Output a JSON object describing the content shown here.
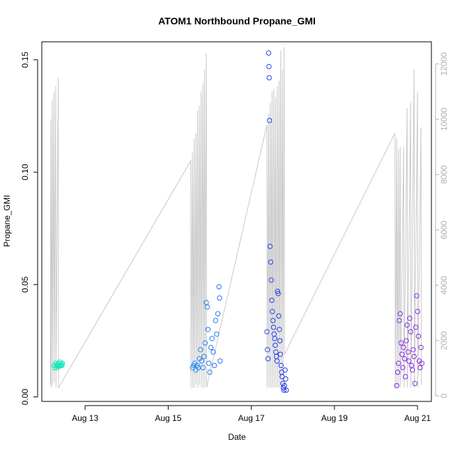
{
  "chart_data": {
    "type": "scatter",
    "title": "ATOM1 Northbound Propane_GMI",
    "xlabel": "Date",
    "ylabel": "Propane_GMI",
    "x_ticks": [
      "Aug 13",
      "Aug 15",
      "Aug 17",
      "Aug 19",
      "Aug 21"
    ],
    "x_tick_values": [
      "2023-08-13",
      "2023-08-15",
      "2023-08-17",
      "2023-08-19",
      "2023-08-21"
    ],
    "xlim": [
      "2023-08-11 23:00",
      "2023-08-21 08:00"
    ],
    "y_ticks": [
      "0.00",
      "0.05",
      "0.10",
      "0.15"
    ],
    "y_tick_values": [
      0,
      0.05,
      0.1,
      0.15
    ],
    "ylim": [
      -0.002,
      0.158
    ],
    "y2_ticks": [
      "0",
      "2000",
      "4000",
      "6000",
      "8000",
      "10000",
      "12000"
    ],
    "y2_tick_values": [
      0,
      2000,
      4000,
      6000,
      8000,
      10000,
      12000
    ],
    "y2lim": [
      -200,
      12800
    ],
    "grid": false,
    "legend": "none",
    "colors": {
      "points_gradient": [
        "#1de9b6",
        "#13c8e0",
        "#1ea5f0",
        "#2e5cf5",
        "#1f2fe8",
        "#6d2cf0",
        "#8a2be2"
      ],
      "secondary_line": "#c8c8c8"
    },
    "series": [
      {
        "marker": "circle",
        "points": [
          [
            "2023-08-12 06:00",
            0.014
          ],
          [
            "2023-08-12 06:30",
            0.013
          ],
          [
            "2023-08-12 07:00",
            0.015
          ],
          [
            "2023-08-12 07:15",
            0.014
          ],
          [
            "2023-08-12 07:40",
            0.013
          ],
          [
            "2023-08-12 08:00",
            0.0145
          ],
          [
            "2023-08-12 08:20",
            0.014
          ],
          [
            "2023-08-12 08:40",
            0.015
          ],
          [
            "2023-08-12 09:00",
            0.0135
          ],
          [
            "2023-08-12 09:20",
            0.014
          ],
          [
            "2023-08-12 09:40",
            0.0155
          ],
          [
            "2023-08-12 10:00",
            0.014
          ],
          [
            "2023-08-12 10:20",
            0.0145
          ],
          [
            "2023-08-12 10:40",
            0.014
          ],
          [
            "2023-08-12 11:00",
            0.015
          ],
          [
            "2023-08-15 14:00",
            0.013
          ],
          [
            "2023-08-15 14:40",
            0.014
          ],
          [
            "2023-08-15 15:20",
            0.015
          ],
          [
            "2023-08-15 16:00",
            0.012
          ],
          [
            "2023-08-15 16:40",
            0.014
          ],
          [
            "2023-08-15 17:20",
            0.013
          ],
          [
            "2023-08-15 18:00",
            0.017
          ],
          [
            "2023-08-15 18:40",
            0.021
          ],
          [
            "2023-08-15 19:20",
            0.016
          ],
          [
            "2023-08-15 20:00",
            0.013
          ],
          [
            "2023-08-15 20:40",
            0.018
          ],
          [
            "2023-08-15 21:20",
            0.024
          ],
          [
            "2023-08-15 22:00",
            0.042
          ],
          [
            "2023-08-15 22:30",
            0.04
          ],
          [
            "2023-08-15 23:00",
            0.03
          ],
          [
            "2023-08-15 23:30",
            0.015
          ],
          [
            "2023-08-16 00:00",
            0.011
          ],
          [
            "2023-08-16 00:40",
            0.022
          ],
          [
            "2023-08-16 01:20",
            0.026
          ],
          [
            "2023-08-16 02:00",
            0.02
          ],
          [
            "2023-08-16 02:40",
            0.014
          ],
          [
            "2023-08-16 03:20",
            0.034
          ],
          [
            "2023-08-16 04:00",
            0.028
          ],
          [
            "2023-08-16 04:40",
            0.037
          ],
          [
            "2023-08-16 05:20",
            0.049
          ],
          [
            "2023-08-16 05:40",
            0.044
          ],
          [
            "2023-08-16 06:00",
            0.016
          ],
          [
            "2023-08-17 09:00",
            0.029
          ],
          [
            "2023-08-17 09:20",
            0.021
          ],
          [
            "2023-08-17 09:40",
            0.017
          ],
          [
            "2023-08-17 10:00",
            0.153
          ],
          [
            "2023-08-17 10:10",
            0.147
          ],
          [
            "2023-08-17 10:20",
            0.142
          ],
          [
            "2023-08-17 10:30",
            0.123
          ],
          [
            "2023-08-17 10:50",
            0.067
          ],
          [
            "2023-08-17 11:10",
            0.06
          ],
          [
            "2023-08-17 11:30",
            0.052
          ],
          [
            "2023-08-17 11:50",
            0.043
          ],
          [
            "2023-08-17 12:10",
            0.038
          ],
          [
            "2023-08-17 12:30",
            0.034
          ],
          [
            "2023-08-17 12:50",
            0.031
          ],
          [
            "2023-08-17 13:10",
            0.028
          ],
          [
            "2023-08-17 13:30",
            0.026
          ],
          [
            "2023-08-17 13:50",
            0.023
          ],
          [
            "2023-08-17 14:10",
            0.02
          ],
          [
            "2023-08-17 14:30",
            0.018
          ],
          [
            "2023-08-17 14:50",
            0.016
          ],
          [
            "2023-08-17 15:10",
            0.047
          ],
          [
            "2023-08-17 15:30",
            0.046
          ],
          [
            "2023-08-17 15:50",
            0.036
          ],
          [
            "2023-08-17 16:10",
            0.03
          ],
          [
            "2023-08-17 16:30",
            0.025
          ],
          [
            "2023-08-17 16:50",
            0.019
          ],
          [
            "2023-08-17 17:10",
            0.014
          ],
          [
            "2023-08-17 17:30",
            0.011
          ],
          [
            "2023-08-17 17:50",
            0.009
          ],
          [
            "2023-08-17 18:10",
            0.006
          ],
          [
            "2023-08-17 18:30",
            0.004
          ],
          [
            "2023-08-17 18:50",
            0.003
          ],
          [
            "2023-08-17 19:10",
            0.005
          ],
          [
            "2023-08-17 19:30",
            0.012
          ],
          [
            "2023-08-17 19:50",
            0.008
          ],
          [
            "2023-08-17 20:10",
            0.003
          ],
          [
            "2023-08-20 12:00",
            0.005
          ],
          [
            "2023-08-20 12:30",
            0.011
          ],
          [
            "2023-08-20 13:00",
            0.015
          ],
          [
            "2023-08-20 13:30",
            0.034
          ],
          [
            "2023-08-20 14:00",
            0.037
          ],
          [
            "2023-08-20 14:30",
            0.024
          ],
          [
            "2023-08-20 15:00",
            0.019
          ],
          [
            "2023-08-20 15:30",
            0.013
          ],
          [
            "2023-08-20 16:00",
            0.022
          ],
          [
            "2023-08-20 16:30",
            0.017
          ],
          [
            "2023-08-20 17:00",
            0.009
          ],
          [
            "2023-08-20 17:30",
            0.025
          ],
          [
            "2023-08-20 18:00",
            0.032
          ],
          [
            "2023-08-20 18:30",
            0.02
          ],
          [
            "2023-08-20 19:00",
            0.016
          ],
          [
            "2023-08-20 19:30",
            0.035
          ],
          [
            "2023-08-20 20:00",
            0.029
          ],
          [
            "2023-08-20 20:30",
            0.014
          ],
          [
            "2023-08-20 21:00",
            0.012
          ],
          [
            "2023-08-20 21:30",
            0.021
          ],
          [
            "2023-08-20 22:00",
            0.018
          ],
          [
            "2023-08-20 22:30",
            0.006
          ],
          [
            "2023-08-20 23:00",
            0.031
          ],
          [
            "2023-08-20 23:30",
            0.045
          ],
          [
            "2023-08-21 00:00",
            0.038
          ],
          [
            "2023-08-21 00:30",
            0.027
          ],
          [
            "2023-08-21 01:00",
            0.016
          ],
          [
            "2023-08-21 01:30",
            0.013
          ],
          [
            "2023-08-21 02:00",
            0.022
          ],
          [
            "2023-08-21 02:30",
            0.015
          ]
        ]
      },
      {
        "axis": "right",
        "style": "line",
        "color": "#c8c8c8",
        "points": [
          [
            "2023-08-12 04:00",
            400
          ],
          [
            "2023-08-12 04:10",
            10000
          ],
          [
            "2023-08-12 04:20",
            300
          ],
          [
            "2023-08-12 05:00",
            10700
          ],
          [
            "2023-08-12 05:10",
            400
          ],
          [
            "2023-08-12 06:00",
            11000
          ],
          [
            "2023-08-12 06:10",
            500
          ],
          [
            "2023-08-12 07:00",
            11200
          ],
          [
            "2023-08-12 07:10",
            300
          ],
          [
            "2023-08-12 08:30",
            11500
          ],
          [
            "2023-08-12 08:40",
            300
          ],
          [
            "2023-08-15 13:00",
            8500
          ],
          [
            "2023-08-15 13:10",
            300
          ],
          [
            "2023-08-15 14:00",
            8800
          ],
          [
            "2023-08-15 14:10",
            300
          ],
          [
            "2023-08-15 15:00",
            9300
          ],
          [
            "2023-08-15 15:10",
            300
          ],
          [
            "2023-08-15 16:00",
            9500
          ],
          [
            "2023-08-15 16:10",
            400
          ],
          [
            "2023-08-15 17:00",
            10300
          ],
          [
            "2023-08-15 17:10",
            300
          ],
          [
            "2023-08-15 18:00",
            10500
          ],
          [
            "2023-08-15 18:10",
            400
          ],
          [
            "2023-08-15 19:00",
            11000
          ],
          [
            "2023-08-15 19:10",
            300
          ],
          [
            "2023-08-15 20:00",
            11300
          ],
          [
            "2023-08-15 20:10",
            300
          ],
          [
            "2023-08-15 21:00",
            11800
          ],
          [
            "2023-08-15 21:10",
            300
          ],
          [
            "2023-08-15 22:00",
            12400
          ],
          [
            "2023-08-15 22:10",
            300
          ],
          [
            "2023-08-17 09:00",
            9800
          ],
          [
            "2023-08-17 09:10",
            300
          ],
          [
            "2023-08-17 10:00",
            10200
          ],
          [
            "2023-08-17 10:10",
            300
          ],
          [
            "2023-08-17 11:00",
            10600
          ],
          [
            "2023-08-17 11:10",
            300
          ],
          [
            "2023-08-17 12:00",
            11000
          ],
          [
            "2023-08-17 12:10",
            300
          ],
          [
            "2023-08-17 13:00",
            11100
          ],
          [
            "2023-08-17 13:10",
            300
          ],
          [
            "2023-08-17 14:00",
            10800
          ],
          [
            "2023-08-17 14:10",
            300
          ],
          [
            "2023-08-17 15:00",
            11200
          ],
          [
            "2023-08-17 15:10",
            300
          ],
          [
            "2023-08-17 16:00",
            11400
          ],
          [
            "2023-08-17 16:10",
            300
          ],
          [
            "2023-08-17 17:00",
            12500
          ],
          [
            "2023-08-17 17:10",
            300
          ],
          [
            "2023-08-17 18:00",
            11800
          ],
          [
            "2023-08-17 18:10",
            300
          ],
          [
            "2023-08-17 19:00",
            12600
          ],
          [
            "2023-08-17 19:10",
            1500
          ],
          [
            "2023-08-20 11:00",
            9500
          ],
          [
            "2023-08-20 11:10",
            300
          ],
          [
            "2023-08-20 12:00",
            9300
          ],
          [
            "2023-08-20 12:10",
            300
          ],
          [
            "2023-08-20 13:00",
            8900
          ],
          [
            "2023-08-20 13:10",
            300
          ],
          [
            "2023-08-20 14:00",
            9000
          ],
          [
            "2023-08-20 14:10",
            300
          ],
          [
            "2023-08-20 16:00",
            9000
          ],
          [
            "2023-08-20 16:10",
            300
          ],
          [
            "2023-08-20 18:00",
            10400
          ],
          [
            "2023-08-20 18:10",
            300
          ],
          [
            "2023-08-20 20:00",
            10600
          ],
          [
            "2023-08-20 20:10",
            300
          ],
          [
            "2023-08-20 22:00",
            11800
          ],
          [
            "2023-08-20 22:10",
            300
          ],
          [
            "2023-08-21 00:00",
            11000
          ],
          [
            "2023-08-21 00:10",
            300
          ],
          [
            "2023-08-21 02:00",
            9700
          ],
          [
            "2023-08-21 02:10",
            400
          ]
        ]
      }
    ]
  }
}
